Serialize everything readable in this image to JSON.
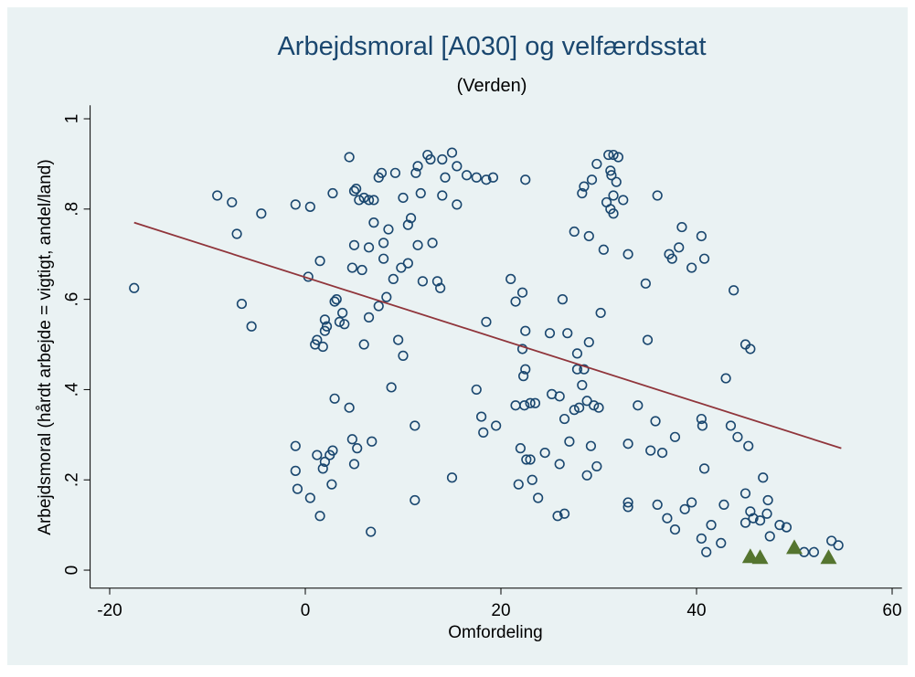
{
  "chart_data": {
    "type": "scatter",
    "title": "Arbejdsmoral [A030] og velfærdsstat",
    "subtitle": "(Verden)",
    "x_label": "Omfordeling",
    "y_label": "Arbejdsmoral (hårdt arbejde = vigtigt, andel/land)",
    "xlim": [
      -22,
      61
    ],
    "ylim": [
      -0.04,
      1.03
    ],
    "xticks": [
      -20,
      0,
      20,
      40,
      60
    ],
    "yticks": [
      0,
      {
        "value": 0.2,
        "label": ".2"
      },
      {
        "value": 0.4,
        "label": ".4"
      },
      {
        "value": 0.6,
        "label": ".6"
      },
      {
        "value": 0.8,
        "label": ".8"
      },
      1
    ],
    "series": [
      {
        "marker": "circle",
        "color": "#1a476f",
        "x": [
          -17.5,
          -9,
          -7.5,
          -7,
          -6.5,
          -5.5,
          -4.5,
          -1,
          0.5,
          0.3,
          1.5,
          1,
          1.2,
          1.8,
          2,
          2.2,
          2,
          3,
          3.2,
          3.5,
          3.8,
          4,
          2.8,
          4.5,
          5,
          5.2,
          5.5,
          6,
          6.5,
          7,
          5,
          6.5,
          4.8,
          5.8,
          6,
          7,
          7.5,
          7.8,
          8,
          8.5,
          8,
          7.5,
          8.3,
          9,
          9.2,
          9.8,
          10,
          10.5,
          10.5,
          10.8,
          11.5,
          11.3,
          11.5,
          11.8,
          12,
          12.5,
          12.8,
          13,
          13.5,
          13.8,
          14,
          14.3,
          14,
          15,
          15.5,
          15.5,
          16.5,
          17.5,
          18.5,
          19.2,
          22.5,
          6.5,
          8.8,
          9.5,
          10,
          11.2,
          4.5,
          3,
          -1,
          -1,
          -0.8,
          0.5,
          1.2,
          1.5,
          1.8,
          2,
          2.5,
          2.8,
          2.7,
          4.8,
          5,
          5.3,
          6.8,
          6.7,
          11.2,
          15,
          21,
          21.5,
          22.2,
          18.5,
          22.5,
          22.2,
          22.5,
          22.3,
          21.5,
          22.4,
          23,
          23.5,
          17.5,
          18,
          18.2,
          19.5,
          22,
          22.6,
          23.2,
          23,
          21.8,
          23.8,
          24.5,
          25,
          25.2,
          26,
          26.3,
          26.8,
          26.5,
          27.5,
          27.8,
          27.8,
          28,
          28.3,
          28.5,
          28.8,
          29,
          29.2,
          29.5,
          29.8,
          30,
          30.2,
          27,
          25.8,
          26.5,
          26,
          28.8,
          27.5,
          28.3,
          28.5,
          29,
          29.3,
          29.8,
          30.5,
          30.8,
          31,
          31.2,
          31.3,
          31.5,
          31.8,
          32,
          31.5,
          31.2,
          31.5,
          32.5,
          33,
          33,
          33,
          33,
          34,
          34.8,
          35,
          35.3,
          35.8,
          36,
          36,
          36.5,
          37,
          37.2,
          37.5,
          37.8,
          37.8,
          38.2,
          38.5,
          38.8,
          39.5,
          39.5,
          40.5,
          40.5,
          40.6,
          40.8,
          40.8,
          40.5,
          41,
          41.5,
          42.5,
          43,
          42.8,
          43.5,
          43.8,
          44.2,
          45,
          45,
          45,
          45.5,
          45.3,
          45.8,
          45.5,
          46.5,
          46.8,
          47.3,
          47.2,
          47.5,
          48.5,
          49.2,
          51,
          52,
          53.8,
          54.5
        ],
        "values": [
          0.625,
          0.83,
          0.815,
          0.745,
          0.59,
          0.54,
          0.79,
          0.81,
          0.805,
          0.65,
          0.685,
          0.5,
          0.51,
          0.495,
          0.555,
          0.54,
          0.53,
          0.595,
          0.6,
          0.55,
          0.57,
          0.545,
          0.835,
          0.915,
          0.84,
          0.845,
          0.82,
          0.825,
          0.82,
          0.82,
          0.72,
          0.715,
          0.67,
          0.665,
          0.5,
          0.77,
          0.87,
          0.88,
          0.725,
          0.755,
          0.69,
          0.585,
          0.605,
          0.645,
          0.88,
          0.67,
          0.825,
          0.765,
          0.68,
          0.78,
          0.895,
          0.88,
          0.72,
          0.835,
          0.64,
          0.92,
          0.91,
          0.725,
          0.64,
          0.625,
          0.91,
          0.87,
          0.83,
          0.925,
          0.895,
          0.81,
          0.875,
          0.87,
          0.865,
          0.87,
          0.865,
          0.56,
          0.405,
          0.51,
          0.475,
          0.32,
          0.36,
          0.38,
          0.275,
          0.22,
          0.18,
          0.16,
          0.255,
          0.12,
          0.225,
          0.24,
          0.255,
          0.265,
          0.19,
          0.29,
          0.235,
          0.27,
          0.285,
          0.085,
          0.155,
          0.205,
          0.645,
          0.595,
          0.615,
          0.55,
          0.53,
          0.49,
          0.445,
          0.43,
          0.365,
          0.365,
          0.37,
          0.37,
          0.4,
          0.34,
          0.305,
          0.32,
          0.27,
          0.245,
          0.2,
          0.245,
          0.19,
          0.16,
          0.26,
          0.525,
          0.39,
          0.385,
          0.6,
          0.525,
          0.335,
          0.355,
          0.445,
          0.48,
          0.36,
          0.41,
          0.445,
          0.375,
          0.505,
          0.275,
          0.365,
          0.23,
          0.36,
          0.57,
          0.285,
          0.12,
          0.125,
          0.235,
          0.21,
          0.75,
          0.835,
          0.85,
          0.74,
          0.865,
          0.9,
          0.71,
          0.815,
          0.92,
          0.885,
          0.875,
          0.92,
          0.86,
          0.915,
          0.83,
          0.8,
          0.79,
          0.82,
          0.7,
          0.28,
          0.14,
          0.15,
          0.365,
          0.635,
          0.51,
          0.265,
          0.33,
          0.83,
          0.145,
          0.26,
          0.115,
          0.7,
          0.69,
          0.09,
          0.295,
          0.715,
          0.76,
          0.135,
          0.67,
          0.15,
          0.74,
          0.335,
          0.32,
          0.69,
          0.225,
          0.07,
          0.04,
          0.1,
          0.06,
          0.425,
          0.145,
          0.32,
          0.62,
          0.295,
          0.17,
          0.105,
          0.5,
          0.49,
          0.275,
          0.115,
          0.13,
          0.11,
          0.205,
          0.155,
          0.125,
          0.075,
          0.1,
          0.095,
          0.04,
          0.04,
          0.065,
          0.055
        ]
      },
      {
        "marker": "triangle",
        "color": "#55752f",
        "x": [
          45.5,
          46.5,
          50,
          53.5
        ],
        "values": [
          0.03,
          0.028,
          0.05,
          0.028
        ]
      }
    ],
    "fit_line": {
      "color": "#90353b",
      "x": [
        -17.5,
        54.8
      ],
      "values": [
        0.77,
        0.27
      ]
    }
  }
}
